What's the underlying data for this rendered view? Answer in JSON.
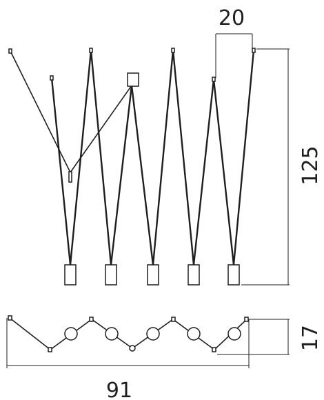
{
  "dimensions": {
    "spacing": "20",
    "height": "125",
    "plan_depth": "17",
    "width": "91"
  },
  "elevation": {
    "fixtures": 5,
    "suspension_points": 7
  },
  "plan": {
    "fixtures": 5,
    "anchor_points": 7
  }
}
